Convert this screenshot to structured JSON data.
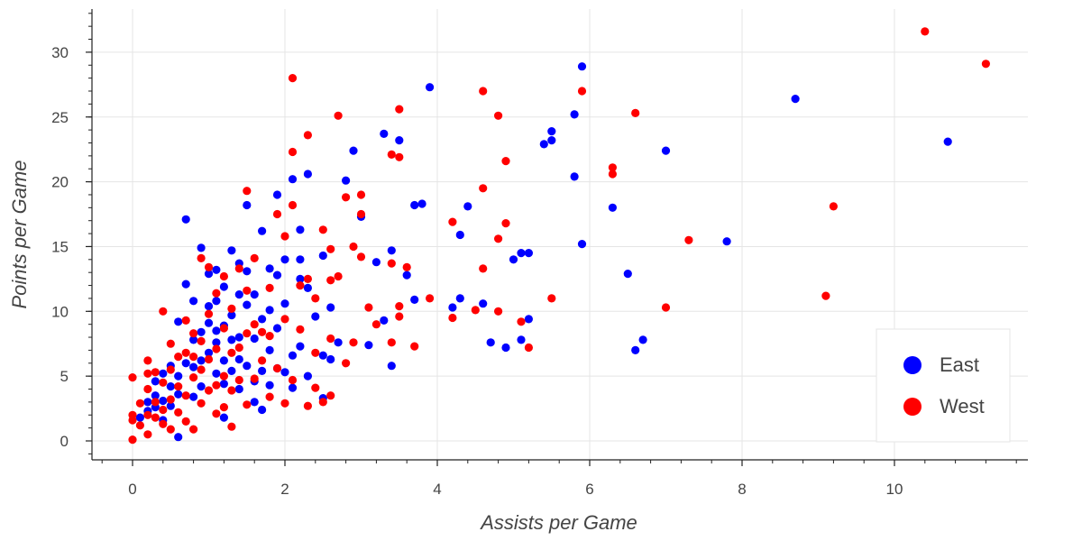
{
  "chart_data": {
    "type": "scatter",
    "title": "",
    "xlabel": "Assists per Game",
    "ylabel": "Points per Game",
    "xlim": [
      -0.5,
      11.7
    ],
    "ylim": [
      -1.5,
      33.5
    ],
    "xticks": [
      0,
      2,
      4,
      6,
      8,
      10
    ],
    "yticks": [
      0,
      5,
      10,
      15,
      20,
      25,
      30
    ],
    "grid": true,
    "legend_position": "bottom-right",
    "colors": {
      "East": "#0000ff",
      "West": "#ff0000"
    },
    "series": [
      {
        "name": "East",
        "color": "#0000ff",
        "points": [
          [
            0.1,
            1.8
          ],
          [
            0.2,
            2.3
          ],
          [
            0.2,
            3.0
          ],
          [
            0.3,
            2.6
          ],
          [
            0.3,
            3.5
          ],
          [
            0.3,
            4.6
          ],
          [
            0.4,
            1.6
          ],
          [
            0.4,
            3.1
          ],
          [
            0.4,
            5.2
          ],
          [
            0.5,
            2.7
          ],
          [
            0.5,
            4.2
          ],
          [
            0.5,
            5.8
          ],
          [
            0.6,
            0.3
          ],
          [
            0.6,
            3.6
          ],
          [
            0.6,
            5.0
          ],
          [
            0.6,
            9.2
          ],
          [
            0.7,
            6.0
          ],
          [
            0.7,
            12.1
          ],
          [
            0.7,
            17.1
          ],
          [
            0.8,
            3.4
          ],
          [
            0.8,
            5.7
          ],
          [
            0.8,
            7.8
          ],
          [
            0.8,
            10.8
          ],
          [
            0.9,
            4.2
          ],
          [
            0.9,
            6.2
          ],
          [
            0.9,
            8.4
          ],
          [
            0.9,
            14.9
          ],
          [
            1.0,
            6.8
          ],
          [
            1.0,
            9.1
          ],
          [
            1.0,
            10.4
          ],
          [
            1.0,
            12.9
          ],
          [
            1.1,
            5.2
          ],
          [
            1.1,
            7.6
          ],
          [
            1.1,
            8.5
          ],
          [
            1.1,
            10.8
          ],
          [
            1.1,
            13.2
          ],
          [
            1.2,
            1.8
          ],
          [
            1.2,
            4.4
          ],
          [
            1.2,
            6.2
          ],
          [
            1.2,
            8.9
          ],
          [
            1.2,
            11.9
          ],
          [
            1.3,
            5.4
          ],
          [
            1.3,
            7.8
          ],
          [
            1.3,
            9.7
          ],
          [
            1.3,
            14.7
          ],
          [
            1.4,
            4.0
          ],
          [
            1.4,
            6.3
          ],
          [
            1.4,
            8.0
          ],
          [
            1.4,
            11.3
          ],
          [
            1.4,
            13.7
          ],
          [
            1.5,
            5.8
          ],
          [
            1.5,
            10.5
          ],
          [
            1.5,
            13.1
          ],
          [
            1.5,
            18.2
          ],
          [
            1.6,
            3.0
          ],
          [
            1.6,
            4.6
          ],
          [
            1.6,
            7.9
          ],
          [
            1.6,
            11.3
          ],
          [
            1.7,
            2.4
          ],
          [
            1.7,
            5.4
          ],
          [
            1.7,
            9.4
          ],
          [
            1.7,
            16.2
          ],
          [
            1.8,
            4.3
          ],
          [
            1.8,
            7.0
          ],
          [
            1.8,
            10.1
          ],
          [
            1.8,
            13.3
          ],
          [
            1.9,
            5.6
          ],
          [
            1.9,
            8.7
          ],
          [
            1.9,
            12.8
          ],
          [
            1.9,
            19.0
          ],
          [
            2.0,
            5.3
          ],
          [
            2.0,
            10.6
          ],
          [
            2.0,
            14.0
          ],
          [
            2.1,
            4.1
          ],
          [
            2.1,
            6.6
          ],
          [
            2.1,
            20.2
          ],
          [
            2.2,
            7.3
          ],
          [
            2.2,
            12.5
          ],
          [
            2.2,
            14.0
          ],
          [
            2.2,
            16.3
          ],
          [
            2.3,
            5.0
          ],
          [
            2.3,
            11.8
          ],
          [
            2.3,
            20.6
          ],
          [
            2.4,
            9.6
          ],
          [
            2.5,
            3.3
          ],
          [
            2.5,
            6.6
          ],
          [
            2.5,
            14.3
          ],
          [
            2.6,
            6.3
          ],
          [
            2.6,
            10.3
          ],
          [
            2.7,
            7.6
          ],
          [
            2.8,
            20.1
          ],
          [
            2.9,
            22.4
          ],
          [
            3.0,
            17.3
          ],
          [
            3.1,
            7.4
          ],
          [
            3.2,
            13.8
          ],
          [
            3.3,
            9.3
          ],
          [
            3.3,
            23.7
          ],
          [
            3.4,
            5.8
          ],
          [
            3.4,
            14.7
          ],
          [
            3.5,
            23.2
          ],
          [
            3.6,
            12.8
          ],
          [
            3.7,
            10.9
          ],
          [
            3.7,
            18.2
          ],
          [
            3.8,
            18.3
          ],
          [
            3.9,
            27.3
          ],
          [
            4.2,
            10.3
          ],
          [
            4.3,
            11.0
          ],
          [
            4.3,
            15.9
          ],
          [
            4.4,
            18.1
          ],
          [
            4.6,
            10.6
          ],
          [
            4.7,
            7.6
          ],
          [
            4.9,
            7.2
          ],
          [
            5.0,
            14.0
          ],
          [
            5.1,
            7.8
          ],
          [
            5.1,
            14.5
          ],
          [
            5.2,
            9.4
          ],
          [
            5.2,
            14.5
          ],
          [
            5.4,
            22.9
          ],
          [
            5.5,
            23.2
          ],
          [
            5.5,
            23.9
          ],
          [
            5.8,
            20.4
          ],
          [
            5.8,
            25.2
          ],
          [
            5.9,
            15.2
          ],
          [
            5.9,
            28.9
          ],
          [
            6.3,
            18.0
          ],
          [
            6.5,
            12.9
          ],
          [
            6.6,
            7.0
          ],
          [
            6.7,
            7.8
          ],
          [
            7.0,
            22.4
          ],
          [
            7.8,
            15.4
          ],
          [
            8.7,
            26.4
          ],
          [
            10.7,
            23.1
          ]
        ]
      },
      {
        "name": "West",
        "color": "#ff0000",
        "points": [
          [
            0.0,
            0.1
          ],
          [
            0.0,
            1.6
          ],
          [
            0.0,
            2.0
          ],
          [
            0.0,
            4.9
          ],
          [
            0.1,
            1.2
          ],
          [
            0.1,
            2.9
          ],
          [
            0.2,
            0.5
          ],
          [
            0.2,
            2.0
          ],
          [
            0.2,
            4.0
          ],
          [
            0.2,
            5.2
          ],
          [
            0.2,
            6.2
          ],
          [
            0.3,
            1.8
          ],
          [
            0.3,
            3.0
          ],
          [
            0.3,
            5.3
          ],
          [
            0.4,
            1.3
          ],
          [
            0.4,
            2.4
          ],
          [
            0.4,
            4.5
          ],
          [
            0.4,
            10.0
          ],
          [
            0.5,
            0.9
          ],
          [
            0.5,
            3.2
          ],
          [
            0.5,
            5.5
          ],
          [
            0.5,
            7.5
          ],
          [
            0.6,
            2.2
          ],
          [
            0.6,
            4.2
          ],
          [
            0.6,
            6.5
          ],
          [
            0.7,
            1.5
          ],
          [
            0.7,
            3.5
          ],
          [
            0.7,
            6.8
          ],
          [
            0.7,
            9.3
          ],
          [
            0.8,
            0.9
          ],
          [
            0.8,
            4.9
          ],
          [
            0.8,
            6.5
          ],
          [
            0.8,
            8.3
          ],
          [
            0.9,
            2.9
          ],
          [
            0.9,
            5.5
          ],
          [
            0.9,
            7.7
          ],
          [
            0.9,
            14.1
          ],
          [
            1.0,
            3.9
          ],
          [
            1.0,
            6.3
          ],
          [
            1.0,
            9.8
          ],
          [
            1.0,
            13.4
          ],
          [
            1.1,
            2.1
          ],
          [
            1.1,
            4.3
          ],
          [
            1.1,
            7.1
          ],
          [
            1.1,
            11.4
          ],
          [
            1.2,
            2.6
          ],
          [
            1.2,
            5.0
          ],
          [
            1.2,
            8.7
          ],
          [
            1.2,
            12.7
          ],
          [
            1.3,
            1.1
          ],
          [
            1.3,
            3.9
          ],
          [
            1.3,
            6.8
          ],
          [
            1.3,
            10.2
          ],
          [
            1.4,
            4.7
          ],
          [
            1.4,
            7.2
          ],
          [
            1.4,
            13.3
          ],
          [
            1.5,
            2.8
          ],
          [
            1.5,
            8.3
          ],
          [
            1.5,
            11.6
          ],
          [
            1.5,
            19.3
          ],
          [
            1.6,
            4.8
          ],
          [
            1.6,
            9.0
          ],
          [
            1.6,
            14.1
          ],
          [
            1.7,
            6.2
          ],
          [
            1.7,
            8.4
          ],
          [
            1.8,
            3.4
          ],
          [
            1.8,
            8.1
          ],
          [
            1.8,
            11.8
          ],
          [
            1.9,
            5.6
          ],
          [
            1.9,
            17.5
          ],
          [
            2.0,
            2.9
          ],
          [
            2.0,
            9.4
          ],
          [
            2.0,
            15.8
          ],
          [
            2.1,
            4.7
          ],
          [
            2.1,
            18.2
          ],
          [
            2.1,
            22.3
          ],
          [
            2.1,
            28.0
          ],
          [
            2.2,
            8.6
          ],
          [
            2.2,
            12.0
          ],
          [
            2.3,
            2.7
          ],
          [
            2.3,
            12.5
          ],
          [
            2.3,
            23.6
          ],
          [
            2.4,
            4.1
          ],
          [
            2.4,
            6.8
          ],
          [
            2.4,
            11.0
          ],
          [
            2.5,
            3.0
          ],
          [
            2.5,
            16.3
          ],
          [
            2.6,
            3.5
          ],
          [
            2.6,
            7.9
          ],
          [
            2.6,
            12.4
          ],
          [
            2.6,
            14.8
          ],
          [
            2.7,
            12.7
          ],
          [
            2.7,
            25.1
          ],
          [
            2.8,
            6.0
          ],
          [
            2.8,
            18.8
          ],
          [
            2.9,
            7.6
          ],
          [
            2.9,
            15.0
          ],
          [
            3.0,
            14.2
          ],
          [
            3.0,
            17.5
          ],
          [
            3.0,
            19.0
          ],
          [
            3.1,
            10.3
          ],
          [
            3.2,
            9.0
          ],
          [
            3.4,
            7.6
          ],
          [
            3.4,
            13.7
          ],
          [
            3.4,
            22.1
          ],
          [
            3.5,
            9.6
          ],
          [
            3.5,
            10.4
          ],
          [
            3.5,
            21.9
          ],
          [
            3.5,
            25.6
          ],
          [
            3.6,
            13.4
          ],
          [
            3.7,
            7.3
          ],
          [
            3.9,
            11.0
          ],
          [
            4.2,
            9.5
          ],
          [
            4.2,
            16.9
          ],
          [
            4.5,
            10.1
          ],
          [
            4.6,
            13.3
          ],
          [
            4.6,
            19.5
          ],
          [
            4.6,
            27.0
          ],
          [
            4.8,
            10.0
          ],
          [
            4.8,
            15.6
          ],
          [
            4.8,
            25.1
          ],
          [
            4.9,
            16.8
          ],
          [
            4.9,
            21.6
          ],
          [
            5.1,
            9.2
          ],
          [
            5.2,
            7.2
          ],
          [
            5.5,
            11.0
          ],
          [
            5.9,
            27.0
          ],
          [
            6.3,
            20.6
          ],
          [
            6.3,
            21.1
          ],
          [
            6.6,
            25.3
          ],
          [
            7.0,
            10.3
          ],
          [
            7.3,
            15.5
          ],
          [
            9.1,
            11.2
          ],
          [
            9.2,
            18.1
          ],
          [
            10.4,
            31.6
          ],
          [
            11.2,
            29.1
          ]
        ]
      }
    ]
  }
}
